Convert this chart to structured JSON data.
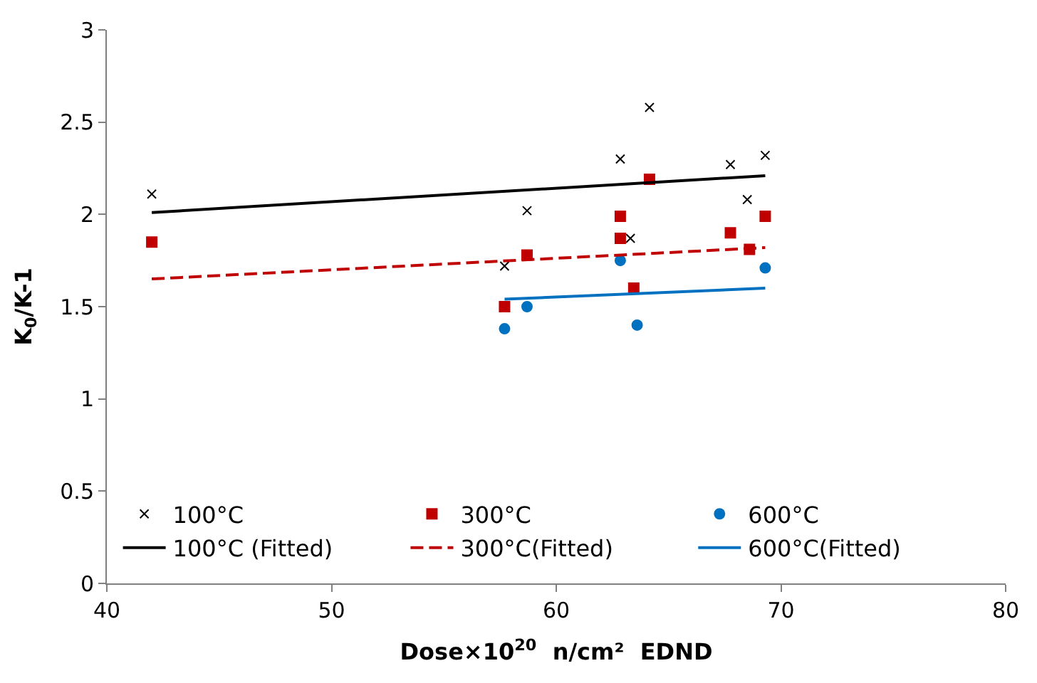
{
  "chart_data": {
    "type": "scatter",
    "xlabel": "Dose×10$^{20}$  n/cm²  EDND",
    "ylabel": "K$_{0}$/K-1",
    "xlim": [
      40,
      80
    ],
    "xticks": [
      40,
      50,
      60,
      70,
      80
    ],
    "ylim": [
      0,
      3
    ],
    "yticks": [
      0,
      0.5,
      1,
      1.5,
      2,
      2.5,
      3
    ],
    "legend": "bottom",
    "series": [
      {
        "name": "100°C",
        "marker": "cross",
        "color": "#000000",
        "x": [
          42.0,
          58.7,
          57.7,
          62.85,
          64.15,
          63.3,
          67.75,
          68.5,
          69.3
        ],
        "values": [
          2.11,
          2.02,
          1.72,
          2.3,
          2.58,
          1.87,
          2.27,
          2.08,
          2.32
        ]
      },
      {
        "name": "300°C",
        "marker": "square",
        "color": "#c00000",
        "x": [
          42.0,
          58.7,
          57.7,
          64.15,
          62.85,
          62.85,
          67.75,
          68.6,
          69.3,
          63.45
        ],
        "values": [
          1.85,
          1.78,
          1.5,
          2.19,
          1.99,
          1.87,
          1.9,
          1.81,
          1.99,
          1.6
        ]
      },
      {
        "name": "600°C",
        "marker": "circle",
        "color": "#0070c0",
        "x": [
          57.7,
          58.7,
          62.85,
          63.6,
          69.3
        ],
        "values": [
          1.38,
          1.5,
          1.75,
          1.4,
          1.71
        ]
      },
      {
        "name": "100°C (Fitted)",
        "type": "line",
        "line_style": "solid",
        "color": "#000000",
        "x": [
          42.0,
          69.3
        ],
        "values": [
          2.01,
          2.21
        ]
      },
      {
        "name": "300°C(Fitted)",
        "type": "line",
        "line_style": "dashed",
        "color": "#c00000",
        "x": [
          42.0,
          69.3
        ],
        "values": [
          1.65,
          1.82
        ]
      },
      {
        "name": "600°C(Fitted)",
        "type": "line",
        "line_style": "solid",
        "color": "#0070c0",
        "x": [
          57.7,
          69.3
        ],
        "values": [
          1.54,
          1.6
        ]
      }
    ]
  }
}
